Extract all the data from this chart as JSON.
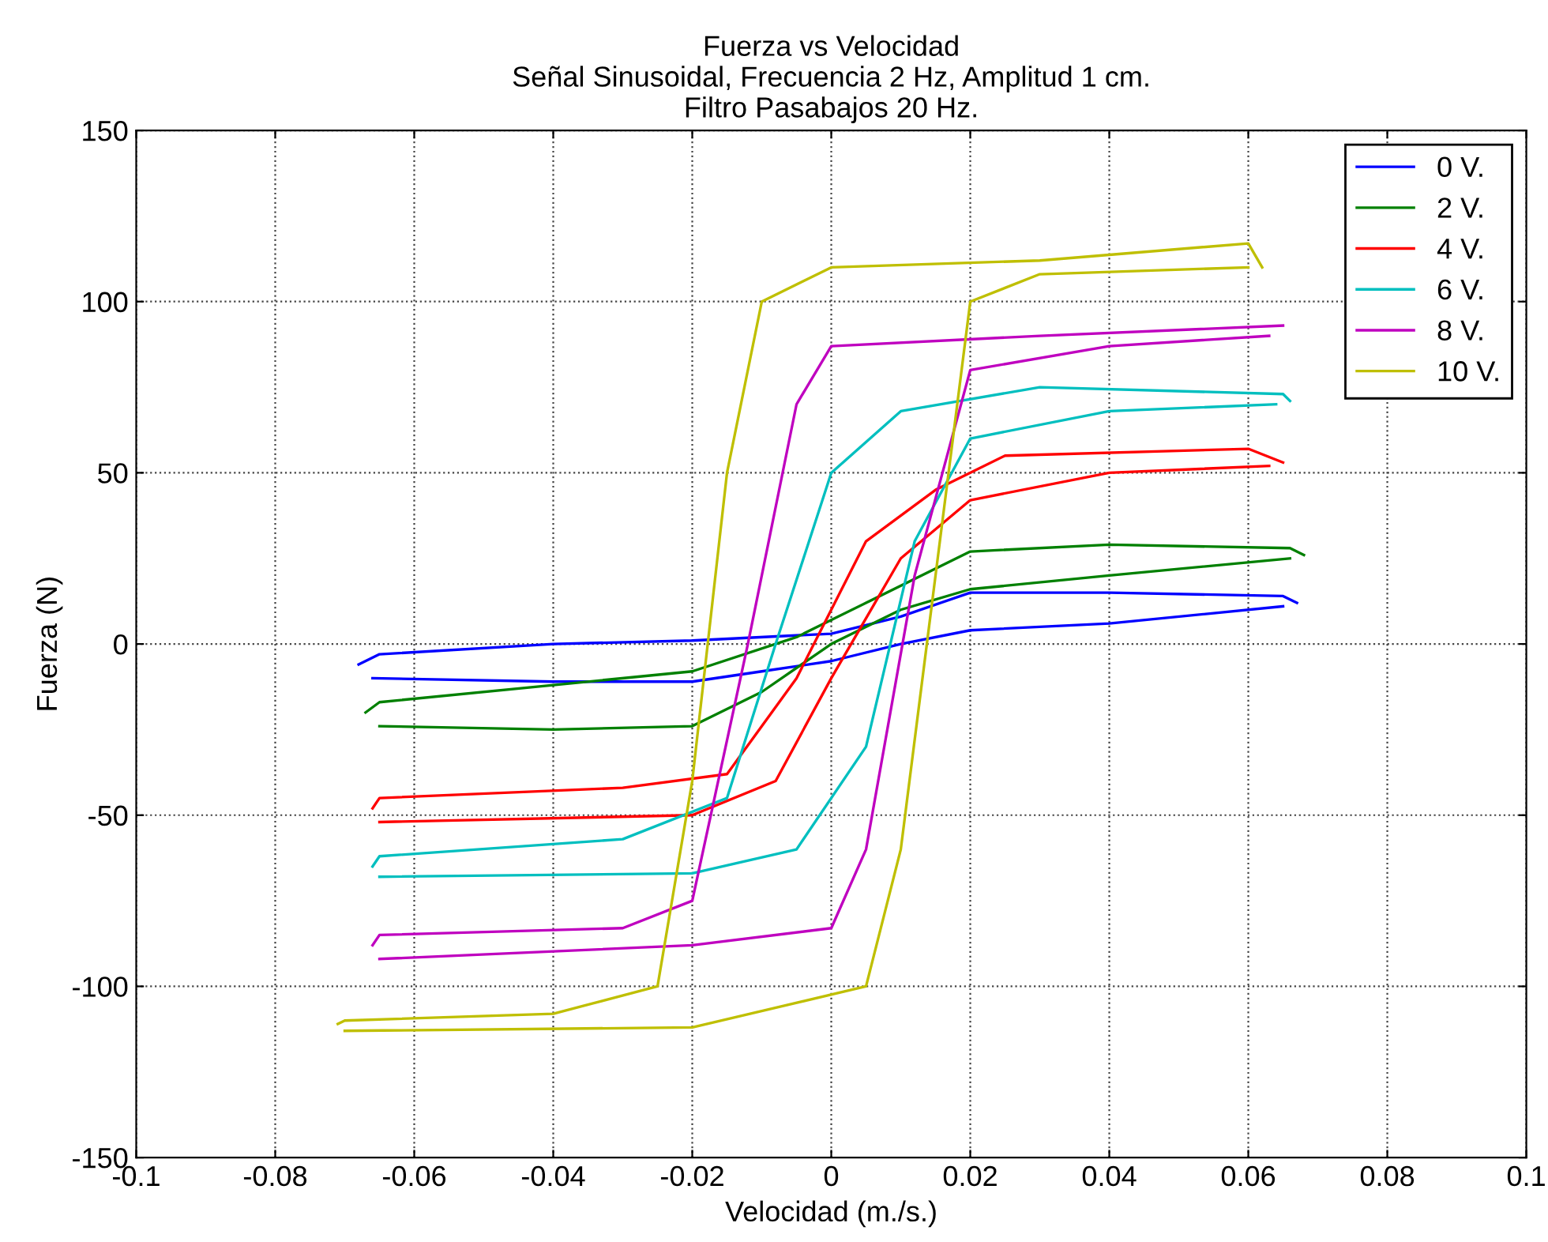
{
  "chart_data": {
    "type": "line",
    "title": "Fuerza vs Velocidad\nSeñal Sinusoidal, Frecuencia 2 Hz, Amplitud 1 cm.\nFiltro Pasabajos 20 Hz.",
    "xlabel": "Velocidad (m./s.)",
    "ylabel": "Fuerza (N)",
    "xlim": [
      -0.1,
      0.1
    ],
    "xticks": [
      -0.1,
      -0.08,
      -0.06,
      -0.04,
      -0.02,
      0,
      0.02,
      0.04,
      0.06,
      0.08,
      0.1
    ],
    "ylim": [
      -150,
      150
    ],
    "yticks": [
      -150,
      -100,
      -50,
      0,
      50,
      100,
      150
    ],
    "grid": true,
    "legend": "top right",
    "series": [
      {
        "name": "0 V.",
        "color": "#0000ff",
        "x": [
          -0.068,
          -0.065,
          -0.04,
          -0.02,
          0,
          0.01,
          0.02,
          0.04,
          0.065,
          0.067
        ],
        "values": [
          -6,
          -3,
          0,
          1,
          3,
          8,
          15,
          15,
          14,
          12
        ]
      },
      {
        "color": "#0000ff",
        "x": [
          -0.066,
          -0.04,
          -0.02,
          -0.01,
          0,
          0.01,
          0.02,
          0.04,
          0.065
        ],
        "values": [
          -10,
          -11,
          -11,
          -8,
          -5,
          0,
          4,
          6,
          11
        ]
      },
      {
        "name": "2 V.",
        "color": "#008000",
        "x": [
          -0.067,
          -0.065,
          -0.04,
          -0.02,
          -0.005,
          0.005,
          0.02,
          0.04,
          0.066,
          0.068
        ],
        "values": [
          -20,
          -17,
          -12,
          -8,
          2,
          12,
          27,
          29,
          28,
          26
        ]
      },
      {
        "color": "#008000",
        "x": [
          -0.065,
          -0.04,
          -0.02,
          -0.01,
          0,
          0.01,
          0.02,
          0.04,
          0.066
        ],
        "values": [
          -24,
          -25,
          -24,
          -14,
          0,
          10,
          16,
          20,
          25
        ]
      },
      {
        "name": "4 V.",
        "color": "#ff0000",
        "x": [
          -0.066,
          -0.065,
          -0.03,
          -0.015,
          -0.005,
          0.005,
          0.015,
          0.025,
          0.06,
          0.065
        ],
        "values": [
          -48,
          -45,
          -42,
          -38,
          -10,
          30,
          45,
          55,
          57,
          53
        ]
      },
      {
        "color": "#ff0000",
        "x": [
          -0.065,
          -0.02,
          -0.008,
          0,
          0.01,
          0.02,
          0.04,
          0.063
        ],
        "values": [
          -52,
          -50,
          -40,
          -10,
          25,
          42,
          50,
          52
        ]
      },
      {
        "name": "6 V.",
        "color": "#00bfbf",
        "x": [
          -0.066,
          -0.065,
          -0.03,
          -0.015,
          -0.008,
          0,
          0.01,
          0.03,
          0.065,
          0.066
        ],
        "values": [
          -65,
          -62,
          -57,
          -45,
          0,
          50,
          68,
          75,
          73,
          71
        ]
      },
      {
        "color": "#00bfbf",
        "x": [
          -0.065,
          -0.02,
          -0.005,
          0.005,
          0.012,
          0.02,
          0.04,
          0.064
        ],
        "values": [
          -68,
          -67,
          -60,
          -30,
          30,
          60,
          68,
          70
        ]
      },
      {
        "name": "8 V.",
        "color": "#bf00bf",
        "x": [
          -0.066,
          -0.065,
          -0.03,
          -0.02,
          -0.012,
          -0.005,
          0,
          0.03,
          0.065
        ],
        "values": [
          -88,
          -85,
          -83,
          -75,
          0,
          70,
          87,
          90,
          93
        ]
      },
      {
        "color": "#bf00bf",
        "x": [
          -0.065,
          -0.02,
          0,
          0.005,
          0.012,
          0.02,
          0.04,
          0.063
        ],
        "values": [
          -92,
          -88,
          -83,
          -60,
          20,
          80,
          87,
          90
        ]
      },
      {
        "name": "10 V.",
        "color": "#bfbf00",
        "x": [
          -0.071,
          -0.07,
          -0.04,
          -0.025,
          -0.02,
          -0.015,
          -0.01,
          0,
          0.03,
          0.06,
          0.062
        ],
        "values": [
          -111,
          -110,
          -108,
          -100,
          -40,
          50,
          100,
          110,
          112,
          117,
          110
        ]
      },
      {
        "color": "#bfbf00",
        "x": [
          -0.07,
          -0.02,
          0.005,
          0.01,
          0.015,
          0.02,
          0.03,
          0.06
        ],
        "values": [
          -113,
          -112,
          -100,
          -60,
          20,
          100,
          108,
          110
        ]
      }
    ]
  }
}
